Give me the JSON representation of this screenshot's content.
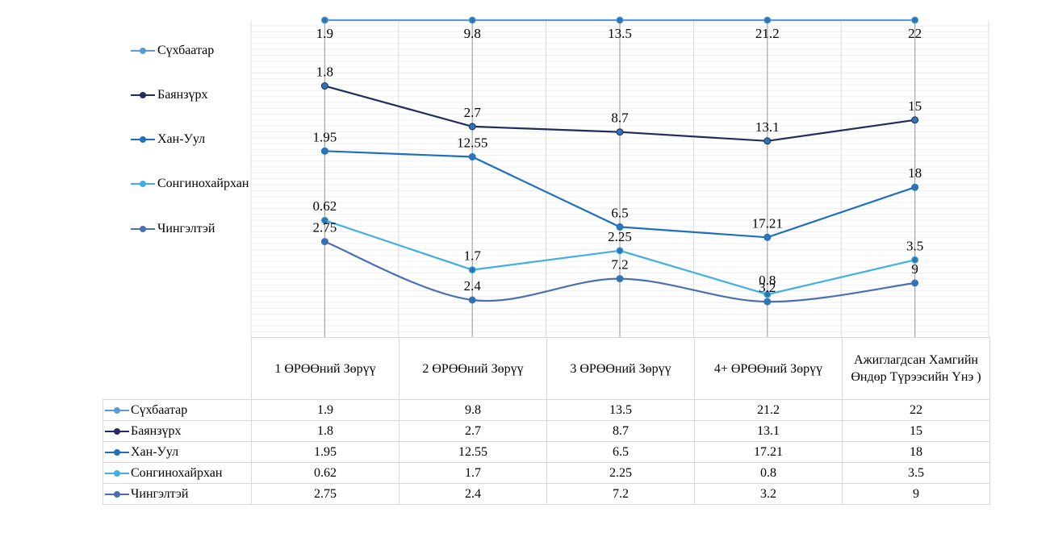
{
  "chart_data": {
    "type": "line",
    "title": "",
    "categories": [
      "1 ӨРӨӨний Зөрүү",
      "2 ӨРӨӨний Зөрүү",
      "3 ӨРӨӨний Зөрүү",
      "4+ ӨРӨӨний Зөрүү",
      "Ажиглагдсан Хамгийн Өндөр Түрээсийн Үнэ )"
    ],
    "series": [
      {
        "name": "Сүхбаатар",
        "color": "#5b9bd5",
        "smooth": false,
        "values": [
          1.9,
          9.8,
          13.5,
          21.2,
          22
        ],
        "labels": [
          "1.9",
          "9.8",
          "13.5",
          "21.2",
          "22"
        ]
      },
      {
        "name": "Баянзүрх",
        "color": "#1f2d5c",
        "smooth": false,
        "values": [
          1.8,
          2.7,
          8.7,
          13.1,
          15
        ],
        "labels": [
          "1.8",
          "2.7",
          "8.7",
          "13.1",
          "15"
        ]
      },
      {
        "name": "Хан-Уул",
        "color": "#1f6fbf",
        "smooth": false,
        "values": [
          1.95,
          12.55,
          6.5,
          17.21,
          18
        ],
        "labels": [
          "1.95",
          "12.55",
          "6.5",
          "17.21",
          "18"
        ]
      },
      {
        "name": "Сонгинохайрхан",
        "color": "#3fb0e3",
        "smooth": false,
        "values": [
          0.62,
          1.7,
          2.25,
          0.8,
          3.5
        ],
        "labels": [
          "0.62",
          "1.7",
          "2.25",
          "0.8",
          "3.5"
        ]
      },
      {
        "name": "Чингэлтэй",
        "color": "#4a6fb5",
        "smooth": true,
        "values": [
          2.75,
          2.4,
          7.2,
          3.2,
          9
        ],
        "labels": [
          "2.75",
          "2.4",
          "7.2",
          "3.2",
          "9"
        ]
      }
    ],
    "point_y_levels": [
      [
        0.0,
        0.0,
        0.0,
        0.0,
        0.0
      ],
      [
        0.2076,
        0.3357,
        0.3529,
        0.3811,
        0.3151
      ],
      [
        0.4129,
        0.4314,
        0.6524,
        0.6853,
        0.5271
      ],
      [
        0.6316,
        0.7878,
        0.7271,
        0.8653,
        0.7565
      ],
      [
        0.6988,
        0.8829,
        0.8159,
        0.8882,
        0.8294
      ]
    ],
    "grid": true,
    "legend_position": "left",
    "data_table": true
  }
}
